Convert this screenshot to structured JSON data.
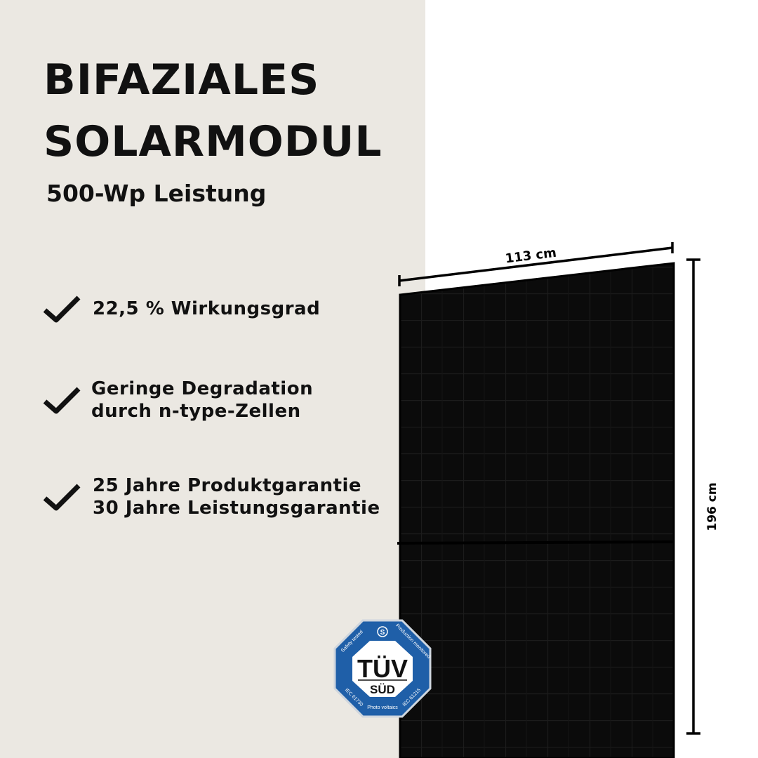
{
  "headline": {
    "line1": "BIFAZIALES",
    "line2": "SOLARMODUL"
  },
  "subtitle": "500-Wp Leistung",
  "features": [
    {
      "icon": "checkmark-icon",
      "lines": [
        "22,5 % Wirkungsgrad"
      ]
    },
    {
      "icon": "checkmark-icon",
      "lines": [
        "Geringe Degradation",
        "durch n-type-Zellen"
      ]
    },
    {
      "icon": "checkmark-icon",
      "lines": [
        "25 Jahre Produktgarantie",
        "30 Jahre Leistungsgarantie"
      ]
    }
  ],
  "dimensions": {
    "width": "113 cm",
    "height": "196 cm"
  },
  "badge": {
    "brand": "TÜV",
    "sub": "SÜD",
    "top_left": "Safety tested",
    "top_right": "Production monitored",
    "bottom_left": "IEC 61730",
    "bottom_right": "IEC 61215",
    "bottom": "Photo voltaics",
    "color": "#1f5fa8"
  },
  "colors": {
    "background_left": "#ebe8e2",
    "panel": "#0b0b0b"
  }
}
